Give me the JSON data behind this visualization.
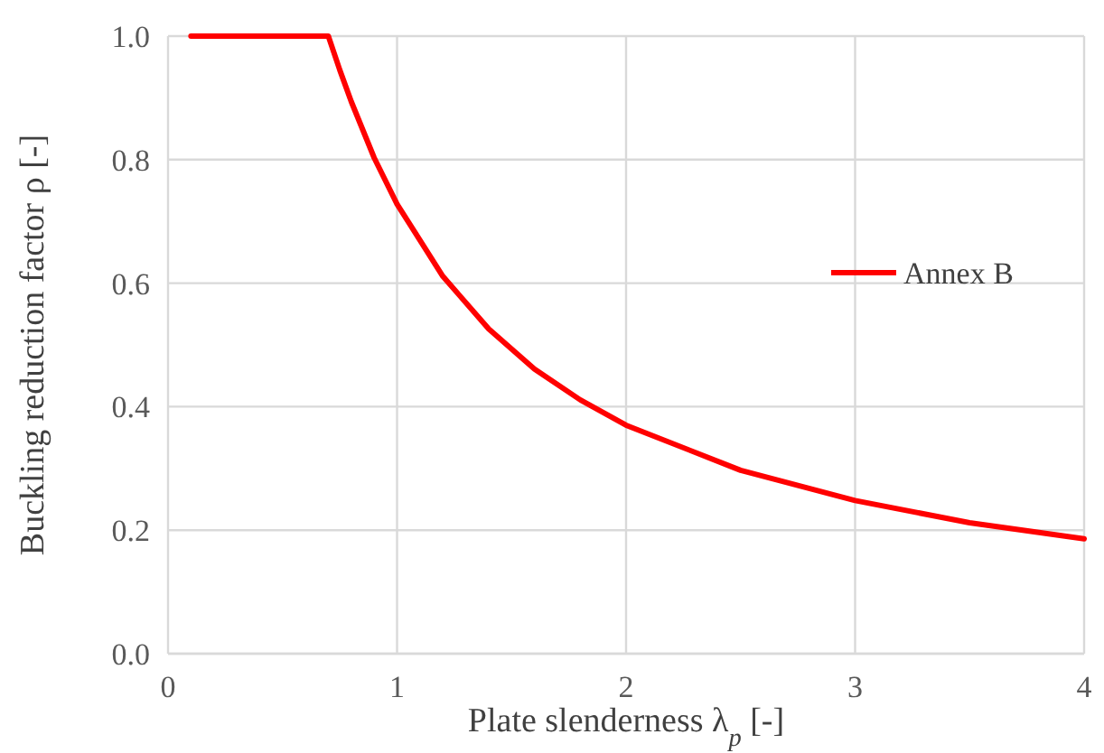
{
  "chart_data": {
    "type": "line",
    "xlabel": "Plate slenderness λ$_{p}$ [-]",
    "ylabel": "Buckling reduction factor ρ [-]",
    "xlim": [
      0,
      4
    ],
    "ylim": [
      0,
      1
    ],
    "xticks": [
      0,
      1,
      2,
      3,
      4
    ],
    "yticks": [
      {
        "value": 0,
        "label": "0.0"
      },
      {
        "value": 0.2,
        "label": "0.2"
      },
      {
        "value": 0.4,
        "label": "0.4"
      },
      {
        "value": 0.6,
        "label": "0.6"
      },
      {
        "value": 0.8,
        "label": "0.8"
      },
      {
        "value": 1,
        "label": "1.0"
      }
    ],
    "grid": true,
    "legend": "right",
    "marker": "none",
    "line_style": "solid",
    "series": [
      {
        "name": "Annex B",
        "color": "#ff0000",
        "x": [
          0.1,
          0.7,
          0.75,
          0.8,
          0.9,
          1.0,
          1.2,
          1.4,
          1.6,
          1.8,
          2.0,
          2.5,
          3.0,
          3.5,
          4.0
        ],
        "values": [
          1,
          1,
          0.945,
          0.894,
          0.803,
          0.728,
          0.611,
          0.526,
          0.461,
          0.411,
          0.37,
          0.297,
          0.248,
          0.212,
          0.186
        ]
      }
    ]
  }
}
